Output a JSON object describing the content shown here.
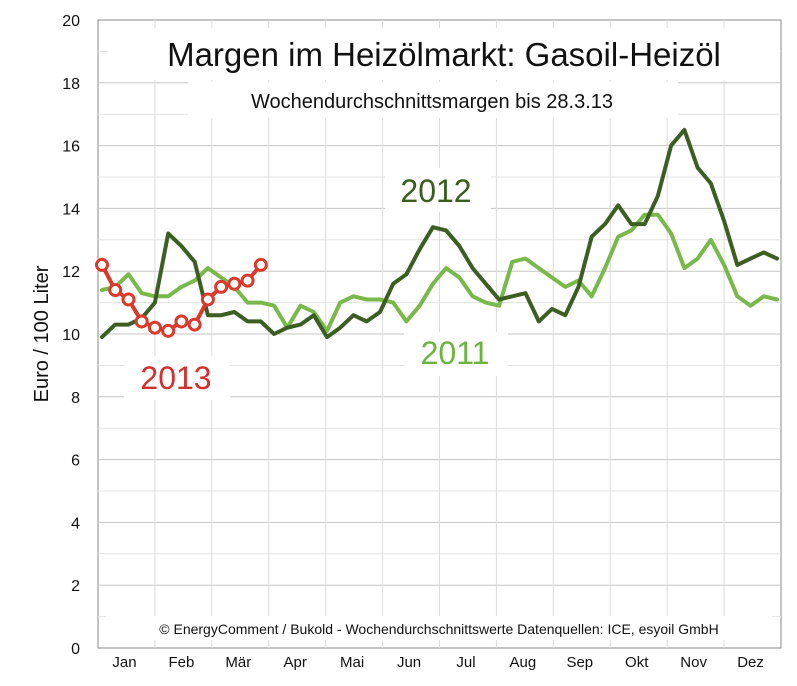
{
  "chart_data": {
    "type": "line",
    "title": "Margen im Heizölmarkt: Gasoil-Heizöl",
    "subtitle": "Wochendurchschnittsmargen bis 28.3.13",
    "ylabel": "Euro / 100 Liter",
    "ylim": [
      0,
      20
    ],
    "yticks": [
      0,
      2,
      4,
      6,
      8,
      10,
      12,
      14,
      16,
      18,
      20
    ],
    "months": [
      "Jan",
      "Feb",
      "Mär",
      "Apr",
      "Mai",
      "Jun",
      "Jul",
      "Aug",
      "Sep",
      "Okt",
      "Nov",
      "Dez"
    ],
    "grid": true,
    "credit": "© EnergyComment / Bukold - Wochendurchschnittswerte Datenquellen: ICE, esyoil GmbH",
    "series": [
      {
        "name": "2011",
        "color": "#79b84a",
        "label_color": "#6cb33f",
        "weeks": [
          1,
          2,
          3,
          4,
          5,
          6,
          7,
          8,
          9,
          10,
          11,
          12,
          13,
          14,
          15,
          16,
          17,
          18,
          19,
          20,
          21,
          22,
          23,
          24,
          25,
          26,
          27,
          28,
          29,
          30,
          31,
          32,
          33,
          34,
          35,
          36,
          37,
          38,
          39,
          40,
          41,
          42,
          43,
          44,
          45,
          46,
          47,
          48,
          49,
          50,
          51,
          52
        ],
        "values": [
          11.4,
          11.5,
          11.9,
          11.3,
          11.2,
          11.2,
          11.5,
          11.7,
          12.1,
          11.8,
          11.5,
          11.0,
          11.0,
          10.9,
          10.2,
          10.9,
          10.7,
          10.1,
          11.0,
          11.2,
          11.1,
          11.1,
          11.0,
          10.4,
          10.9,
          11.6,
          12.1,
          11.8,
          11.2,
          11.0,
          10.9,
          12.3,
          12.4,
          12.1,
          11.8,
          11.5,
          11.7,
          11.2,
          12.1,
          13.1,
          13.3,
          13.8,
          13.8,
          13.2,
          12.1,
          12.4,
          13.0,
          12.2,
          11.2,
          10.9,
          11.2,
          11.1
        ]
      },
      {
        "name": "2012",
        "color": "#3d5e22",
        "label_color": "#3a5d1f",
        "weeks": [
          1,
          2,
          3,
          4,
          5,
          6,
          7,
          8,
          9,
          10,
          11,
          12,
          13,
          14,
          15,
          16,
          17,
          18,
          19,
          20,
          21,
          22,
          23,
          24,
          25,
          26,
          27,
          28,
          29,
          30,
          31,
          32,
          33,
          34,
          35,
          36,
          37,
          38,
          39,
          40,
          41,
          42,
          43,
          44,
          45,
          46,
          47,
          48,
          49,
          50,
          51,
          52
        ],
        "values": [
          9.9,
          10.3,
          10.3,
          10.5,
          11.0,
          13.2,
          12.8,
          12.3,
          10.6,
          10.6,
          10.7,
          10.4,
          10.4,
          10.0,
          10.2,
          10.3,
          10.6,
          9.9,
          10.2,
          10.6,
          10.4,
          10.7,
          11.6,
          11.9,
          12.7,
          13.4,
          13.3,
          12.8,
          12.1,
          11.6,
          11.1,
          11.2,
          11.3,
          10.4,
          10.8,
          10.6,
          11.5,
          13.1,
          13.5,
          14.1,
          13.5,
          13.5,
          14.4,
          16.0,
          16.5,
          15.3,
          14.8,
          13.6,
          12.2,
          12.4,
          12.6,
          12.4
        ]
      },
      {
        "name": "2013",
        "color": "#d93a2b",
        "label_color": "#d32f2f",
        "weeks": [
          1,
          2,
          3,
          4,
          5,
          6,
          7,
          8,
          9,
          10,
          11,
          12,
          13
        ],
        "values": [
          12.2,
          11.4,
          11.1,
          10.4,
          10.2,
          10.1,
          10.4,
          10.3,
          11.1,
          11.5,
          11.6,
          11.7,
          12.2
        ]
      }
    ]
  }
}
